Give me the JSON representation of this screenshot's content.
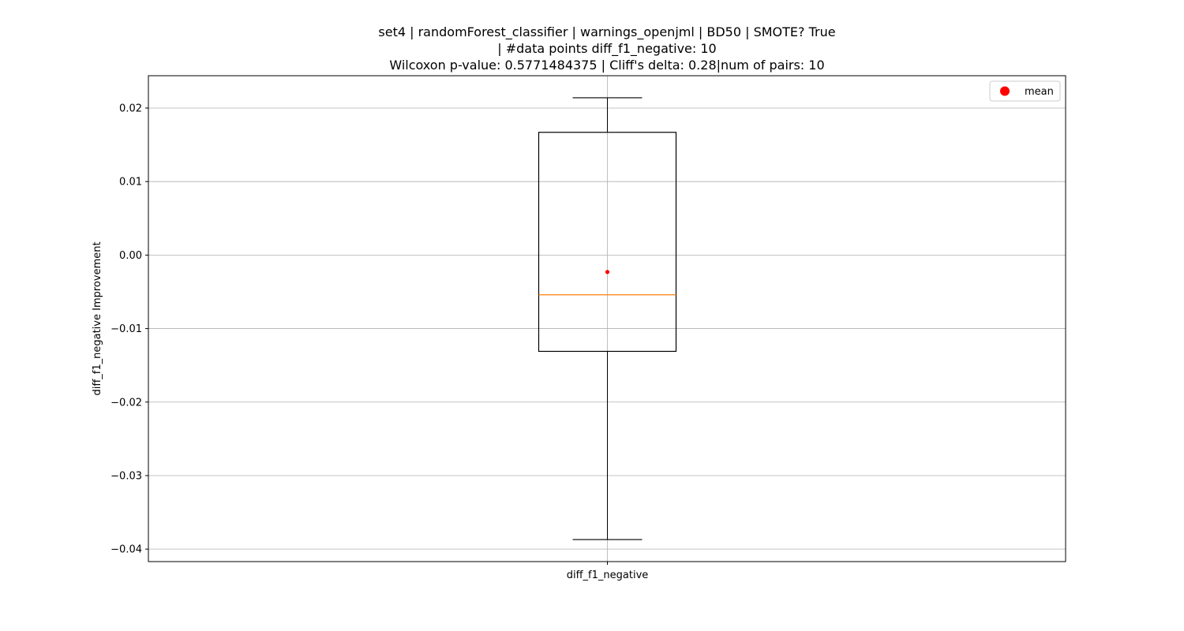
{
  "chart_data": {
    "type": "box",
    "title_lines": [
      "set4 | randomForest_classifier | warnings_openjml | BD50 | SMOTE? True",
      "| #data points diff_f1_negative: 10",
      "Wilcoxon p-value: 0.5771484375 | Cliff's delta: 0.28|num of pairs: 10"
    ],
    "xlabel": "",
    "ylabel": "diff_f1_negative Improvement",
    "categories": [
      "diff_f1_negative"
    ],
    "box": {
      "whisker_low": -0.0387,
      "q1": -0.0131,
      "median": -0.0054,
      "q3": 0.0167,
      "whisker_high": 0.0214,
      "mean": -0.0023
    },
    "ylim": [
      -0.0417,
      0.0244
    ],
    "yticks": [
      -0.04,
      -0.03,
      -0.02,
      -0.01,
      0.0,
      0.01,
      0.02
    ],
    "ytick_labels": [
      "−0.04",
      "−0.03",
      "−0.02",
      "−0.01",
      "0.00",
      "0.01",
      "0.02"
    ],
    "grid": true,
    "legend": {
      "position": "top-right",
      "entries": [
        {
          "label": "mean",
          "marker": "circle",
          "color": "#ff0000"
        }
      ]
    },
    "colors": {
      "box": "#000000",
      "median": "#ff7f0e",
      "mean": "#ff0000",
      "grid": "#b0b0b0"
    }
  }
}
